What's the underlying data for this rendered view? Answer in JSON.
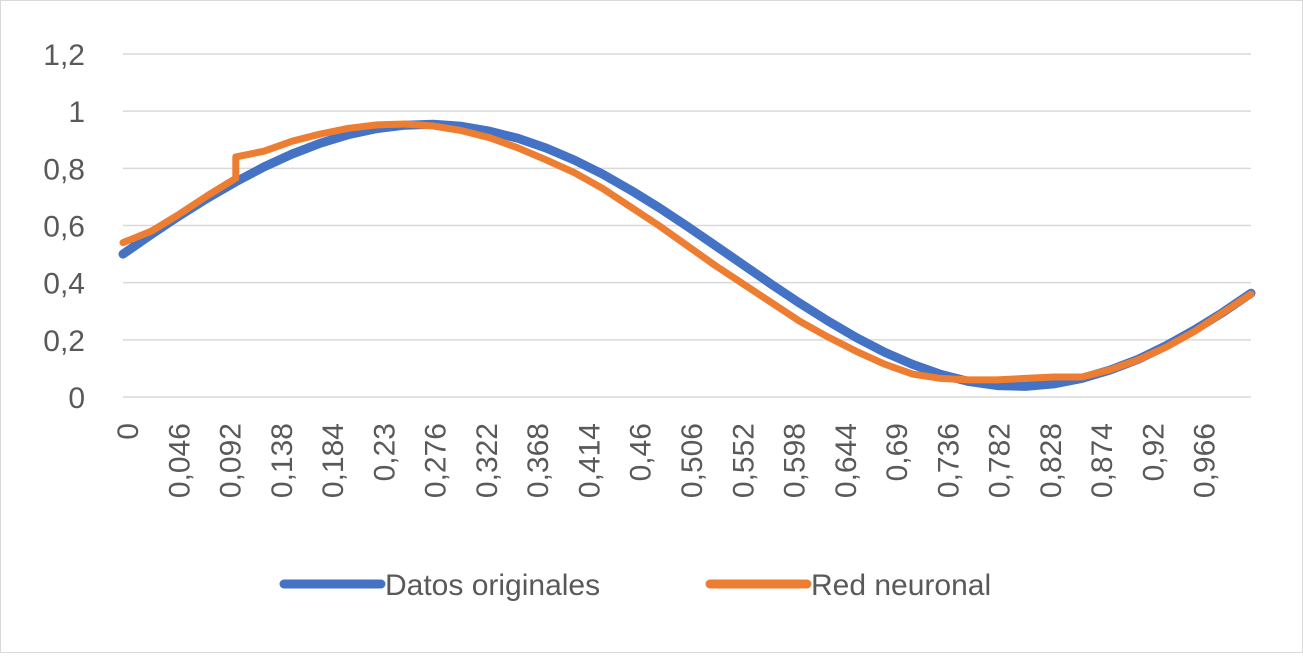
{
  "chart_data": {
    "type": "line",
    "title": "",
    "xlabel": "",
    "ylabel": "",
    "ylim": [
      0,
      1.2
    ],
    "yticks": [
      "0",
      "0,2",
      "0,4",
      "0,6",
      "0,8",
      "1",
      "1,2"
    ],
    "xlim": [
      0,
      1
    ],
    "xticks": [
      "0",
      "0,046",
      "0,092",
      "0,138",
      "0,184",
      "0,23",
      "0,276",
      "0,322",
      "0,368",
      "0,414",
      "0,46",
      "0,506",
      "0,552",
      "0,598",
      "0,644",
      "0,69",
      "0,736",
      "0,782",
      "0,828",
      "0,874",
      "0,92",
      "0,966"
    ],
    "grid": true,
    "legend_position": "bottom",
    "series": [
      {
        "name": "Datos originales",
        "color": "#4472c4",
        "x": [
          0,
          0.025,
          0.05,
          0.075,
          0.1,
          0.125,
          0.15,
          0.175,
          0.2,
          0.225,
          0.25,
          0.275,
          0.3,
          0.325,
          0.35,
          0.375,
          0.4,
          0.425,
          0.45,
          0.475,
          0.5,
          0.525,
          0.55,
          0.575,
          0.6,
          0.625,
          0.65,
          0.675,
          0.7,
          0.725,
          0.75,
          0.775,
          0.8,
          0.825,
          0.85,
          0.875,
          0.9,
          0.925,
          0.95,
          0.975,
          1.0
        ],
        "y": [
          0.5,
          0.568,
          0.634,
          0.696,
          0.753,
          0.805,
          0.85,
          0.888,
          0.918,
          0.939,
          0.951,
          0.954,
          0.947,
          0.93,
          0.905,
          0.871,
          0.829,
          0.78,
          0.724,
          0.663,
          0.598,
          0.53,
          0.462,
          0.394,
          0.328,
          0.266,
          0.208,
          0.157,
          0.114,
          0.079,
          0.054,
          0.04,
          0.037,
          0.046,
          0.065,
          0.094,
          0.132,
          0.18,
          0.235,
          0.296,
          0.363
        ]
      },
      {
        "name": "Red neuronal",
        "color": "#ed7d31",
        "x": [
          0,
          0.025,
          0.05,
          0.075,
          0.1,
          0.1,
          0.125,
          0.15,
          0.175,
          0.2,
          0.225,
          0.25,
          0.275,
          0.3,
          0.325,
          0.35,
          0.375,
          0.4,
          0.425,
          0.45,
          0.475,
          0.5,
          0.525,
          0.55,
          0.575,
          0.6,
          0.625,
          0.65,
          0.675,
          0.7,
          0.725,
          0.75,
          0.775,
          0.8,
          0.825,
          0.85,
          0.875,
          0.9,
          0.925,
          0.95,
          0.975,
          1.0
        ],
        "y": [
          0.54,
          0.58,
          0.64,
          0.705,
          0.765,
          0.84,
          0.86,
          0.895,
          0.92,
          0.94,
          0.952,
          0.955,
          0.948,
          0.932,
          0.907,
          0.872,
          0.83,
          0.785,
          0.73,
          0.665,
          0.6,
          0.53,
          0.46,
          0.395,
          0.33,
          0.265,
          0.21,
          0.16,
          0.115,
          0.08,
          0.065,
          0.06,
          0.06,
          0.065,
          0.07,
          0.07,
          0.095,
          0.13,
          0.175,
          0.23,
          0.295,
          0.36
        ]
      }
    ]
  }
}
